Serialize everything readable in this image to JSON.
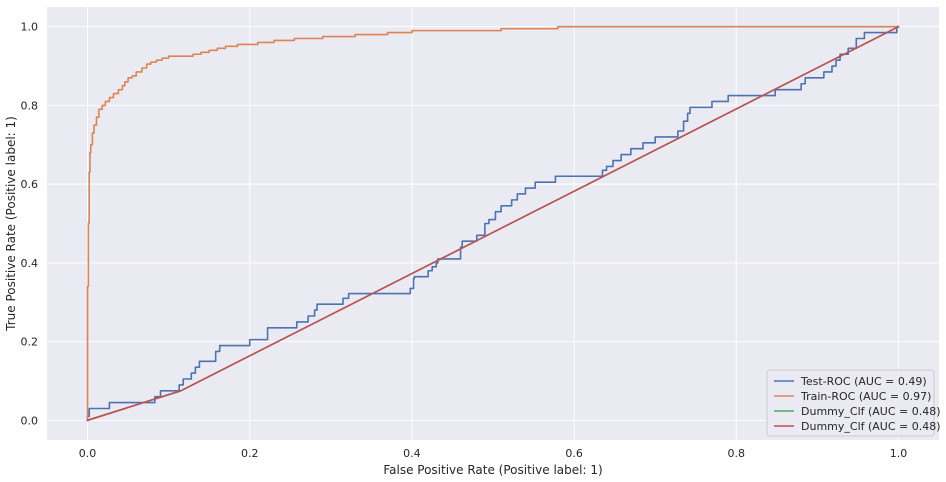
{
  "chart_data": {
    "type": "line",
    "title": "",
    "xlabel": "False Positive Rate (Positive label: 1)",
    "ylabel": "True Positive Rate (Positive label: 1)",
    "xlim": [
      -0.05,
      1.05
    ],
    "ylim": [
      -0.05,
      1.05
    ],
    "xticks": [
      0.0,
      0.2,
      0.4,
      0.6,
      0.8,
      1.0
    ],
    "xtick_labels": [
      "0.0",
      "0.2",
      "0.4",
      "0.6",
      "0.8",
      "1.0"
    ],
    "yticks": [
      0.0,
      0.2,
      0.4,
      0.6,
      0.8,
      1.0
    ],
    "ytick_labels": [
      "0.0",
      "0.2",
      "0.4",
      "0.6",
      "0.8",
      "1.0"
    ],
    "grid": true,
    "background": "#eaeaf2",
    "legend_position": "lower-right",
    "series": [
      {
        "name": "Test-ROC (AUC = 0.49)",
        "color": "#4c72b0",
        "points": [
          [
            0.0,
            0.0
          ],
          [
            0.0,
            0.01
          ],
          [
            0.002,
            0.01
          ],
          [
            0.002,
            0.03
          ],
          [
            0.027,
            0.03
          ],
          [
            0.027,
            0.045
          ],
          [
            0.083,
            0.045
          ],
          [
            0.083,
            0.06
          ],
          [
            0.09,
            0.06
          ],
          [
            0.09,
            0.075
          ],
          [
            0.113,
            0.075
          ],
          [
            0.113,
            0.09
          ],
          [
            0.118,
            0.09
          ],
          [
            0.118,
            0.105
          ],
          [
            0.128,
            0.105
          ],
          [
            0.128,
            0.12
          ],
          [
            0.133,
            0.12
          ],
          [
            0.133,
            0.135
          ],
          [
            0.138,
            0.135
          ],
          [
            0.138,
            0.15
          ],
          [
            0.158,
            0.15
          ],
          [
            0.158,
            0.175
          ],
          [
            0.163,
            0.175
          ],
          [
            0.163,
            0.19
          ],
          [
            0.2,
            0.19
          ],
          [
            0.2,
            0.205
          ],
          [
            0.222,
            0.205
          ],
          [
            0.222,
            0.235
          ],
          [
            0.258,
            0.235
          ],
          [
            0.258,
            0.25
          ],
          [
            0.272,
            0.25
          ],
          [
            0.272,
            0.265
          ],
          [
            0.28,
            0.265
          ],
          [
            0.28,
            0.28
          ],
          [
            0.283,
            0.28
          ],
          [
            0.283,
            0.295
          ],
          [
            0.315,
            0.295
          ],
          [
            0.315,
            0.31
          ],
          [
            0.322,
            0.31
          ],
          [
            0.322,
            0.322
          ],
          [
            0.398,
            0.322
          ],
          [
            0.398,
            0.335
          ],
          [
            0.402,
            0.335
          ],
          [
            0.402,
            0.36
          ],
          [
            0.403,
            0.36
          ],
          [
            0.403,
            0.365
          ],
          [
            0.42,
            0.365
          ],
          [
            0.42,
            0.38
          ],
          [
            0.425,
            0.38
          ],
          [
            0.425,
            0.39
          ],
          [
            0.43,
            0.39
          ],
          [
            0.43,
            0.4
          ],
          [
            0.432,
            0.4
          ],
          [
            0.432,
            0.41
          ],
          [
            0.46,
            0.41
          ],
          [
            0.46,
            0.44
          ],
          [
            0.462,
            0.44
          ],
          [
            0.462,
            0.455
          ],
          [
            0.48,
            0.455
          ],
          [
            0.48,
            0.47
          ],
          [
            0.49,
            0.47
          ],
          [
            0.49,
            0.5
          ],
          [
            0.495,
            0.5
          ],
          [
            0.495,
            0.51
          ],
          [
            0.503,
            0.51
          ],
          [
            0.503,
            0.53
          ],
          [
            0.51,
            0.53
          ],
          [
            0.51,
            0.545
          ],
          [
            0.523,
            0.545
          ],
          [
            0.523,
            0.56
          ],
          [
            0.53,
            0.56
          ],
          [
            0.53,
            0.575
          ],
          [
            0.54,
            0.575
          ],
          [
            0.54,
            0.59
          ],
          [
            0.552,
            0.59
          ],
          [
            0.552,
            0.605
          ],
          [
            0.577,
            0.605
          ],
          [
            0.577,
            0.62
          ],
          [
            0.635,
            0.62
          ],
          [
            0.635,
            0.635
          ],
          [
            0.64,
            0.635
          ],
          [
            0.64,
            0.645
          ],
          [
            0.648,
            0.645
          ],
          [
            0.648,
            0.66
          ],
          [
            0.658,
            0.66
          ],
          [
            0.658,
            0.675
          ],
          [
            0.67,
            0.675
          ],
          [
            0.67,
            0.69
          ],
          [
            0.685,
            0.69
          ],
          [
            0.685,
            0.705
          ],
          [
            0.7,
            0.705
          ],
          [
            0.7,
            0.72
          ],
          [
            0.728,
            0.72
          ],
          [
            0.728,
            0.735
          ],
          [
            0.735,
            0.735
          ],
          [
            0.735,
            0.76
          ],
          [
            0.74,
            0.76
          ],
          [
            0.74,
            0.78
          ],
          [
            0.743,
            0.78
          ],
          [
            0.743,
            0.795
          ],
          [
            0.77,
            0.795
          ],
          [
            0.77,
            0.81
          ],
          [
            0.79,
            0.81
          ],
          [
            0.79,
            0.825
          ],
          [
            0.848,
            0.825
          ],
          [
            0.848,
            0.84
          ],
          [
            0.88,
            0.84
          ],
          [
            0.88,
            0.855
          ],
          [
            0.885,
            0.855
          ],
          [
            0.885,
            0.87
          ],
          [
            0.908,
            0.87
          ],
          [
            0.908,
            0.885
          ],
          [
            0.918,
            0.885
          ],
          [
            0.918,
            0.9
          ],
          [
            0.923,
            0.9
          ],
          [
            0.923,
            0.915
          ],
          [
            0.928,
            0.915
          ],
          [
            0.928,
            0.93
          ],
          [
            0.938,
            0.93
          ],
          [
            0.938,
            0.945
          ],
          [
            0.948,
            0.945
          ],
          [
            0.948,
            0.97
          ],
          [
            0.958,
            0.97
          ],
          [
            0.958,
            0.985
          ],
          [
            0.998,
            0.985
          ],
          [
            0.998,
            1.0
          ],
          [
            1.0,
            1.0
          ]
        ]
      },
      {
        "name": "Train-ROC (AUC = 0.97)",
        "color": "#dd8452",
        "points": [
          [
            0.0,
            0.0
          ],
          [
            0.0,
            0.34
          ],
          [
            0.001,
            0.34
          ],
          [
            0.001,
            0.5
          ],
          [
            0.002,
            0.5
          ],
          [
            0.002,
            0.63
          ],
          [
            0.003,
            0.63
          ],
          [
            0.003,
            0.68
          ],
          [
            0.004,
            0.68
          ],
          [
            0.004,
            0.7
          ],
          [
            0.006,
            0.7
          ],
          [
            0.006,
            0.73
          ],
          [
            0.008,
            0.73
          ],
          [
            0.008,
            0.75
          ],
          [
            0.011,
            0.75
          ],
          [
            0.011,
            0.77
          ],
          [
            0.014,
            0.77
          ],
          [
            0.014,
            0.79
          ],
          [
            0.018,
            0.79
          ],
          [
            0.018,
            0.8
          ],
          [
            0.022,
            0.8
          ],
          [
            0.022,
            0.81
          ],
          [
            0.027,
            0.81
          ],
          [
            0.027,
            0.82
          ],
          [
            0.032,
            0.82
          ],
          [
            0.032,
            0.83
          ],
          [
            0.038,
            0.83
          ],
          [
            0.038,
            0.84
          ],
          [
            0.043,
            0.84
          ],
          [
            0.043,
            0.85
          ],
          [
            0.046,
            0.85
          ],
          [
            0.046,
            0.86
          ],
          [
            0.05,
            0.86
          ],
          [
            0.05,
            0.87
          ],
          [
            0.055,
            0.87
          ],
          [
            0.055,
            0.875
          ],
          [
            0.06,
            0.875
          ],
          [
            0.06,
            0.885
          ],
          [
            0.067,
            0.885
          ],
          [
            0.067,
            0.895
          ],
          [
            0.073,
            0.895
          ],
          [
            0.073,
            0.905
          ],
          [
            0.078,
            0.905
          ],
          [
            0.078,
            0.91
          ],
          [
            0.085,
            0.91
          ],
          [
            0.085,
            0.915
          ],
          [
            0.092,
            0.915
          ],
          [
            0.092,
            0.92
          ],
          [
            0.1,
            0.92
          ],
          [
            0.1,
            0.925
          ],
          [
            0.13,
            0.925
          ],
          [
            0.13,
            0.93
          ],
          [
            0.14,
            0.93
          ],
          [
            0.14,
            0.935
          ],
          [
            0.15,
            0.935
          ],
          [
            0.15,
            0.94
          ],
          [
            0.16,
            0.94
          ],
          [
            0.16,
            0.945
          ],
          [
            0.17,
            0.945
          ],
          [
            0.17,
            0.95
          ],
          [
            0.185,
            0.95
          ],
          [
            0.185,
            0.955
          ],
          [
            0.21,
            0.955
          ],
          [
            0.21,
            0.96
          ],
          [
            0.23,
            0.96
          ],
          [
            0.23,
            0.965
          ],
          [
            0.255,
            0.965
          ],
          [
            0.255,
            0.97
          ],
          [
            0.29,
            0.97
          ],
          [
            0.29,
            0.975
          ],
          [
            0.33,
            0.975
          ],
          [
            0.33,
            0.98
          ],
          [
            0.37,
            0.98
          ],
          [
            0.37,
            0.985
          ],
          [
            0.4,
            0.985
          ],
          [
            0.4,
            0.99
          ],
          [
            0.51,
            0.99
          ],
          [
            0.51,
            0.995
          ],
          [
            0.58,
            0.995
          ],
          [
            0.58,
            1.0
          ],
          [
            1.0,
            1.0
          ]
        ]
      },
      {
        "name": "Dummy_Clf (AUC = 0.48)",
        "color": "#55a868",
        "points": [
          [
            0.0,
            0.0
          ],
          [
            0.115,
            0.075
          ],
          [
            1.0,
            1.0
          ]
        ]
      },
      {
        "name": "Dummy_Clf (AUC = 0.48)",
        "color": "#c44e52",
        "points": [
          [
            0.0,
            0.0
          ],
          [
            0.115,
            0.075
          ],
          [
            1.0,
            1.0
          ]
        ]
      }
    ]
  }
}
